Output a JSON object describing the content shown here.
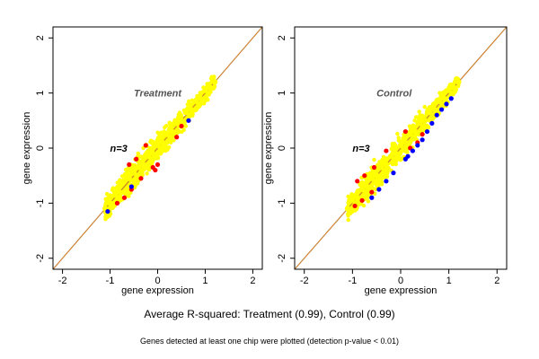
{
  "footer": {
    "summary": "Average R-squared: Treatment (0.99), Control (0.99)",
    "note": "Genes detected at least one chip were plotted (detection p-value < 0.01)"
  },
  "colors": {
    "points_main": "#ffff00",
    "points_red": "#ff0000",
    "points_blue": "#0000ff",
    "diagonal": "#3a3aa0",
    "fit_line": "#e08a1e"
  },
  "chart_data": [
    {
      "type": "scatter",
      "title": "Treatment",
      "annotation": "n=3",
      "xlabel": "gene expression",
      "ylabel": "gene expression",
      "xlim": [
        -2.2,
        2.2
      ],
      "ylim": [
        -2.2,
        2.2
      ],
      "xticks": [
        -2,
        -1,
        0,
        1,
        2
      ],
      "yticks": [
        -2,
        -1,
        0,
        1,
        2
      ],
      "grid": false,
      "reference_lines": [
        {
          "name": "identity",
          "slope": 1,
          "intercept": 0,
          "color": "#3a3aa0"
        },
        {
          "name": "fit",
          "slope": 1,
          "intercept": 0,
          "color": "#e08a1e"
        }
      ],
      "cloud": {
        "x_range": [
          -1.1,
          1.2
        ],
        "spread": 0.14
      },
      "series": [
        {
          "color": "#ffff00",
          "points": [
            [
              -1.1,
              -1.1
            ],
            [
              -1.0,
              -1.0
            ],
            [
              -0.9,
              -0.85
            ],
            [
              -0.8,
              -0.8
            ],
            [
              -0.7,
              -0.6
            ],
            [
              -0.6,
              -0.55
            ],
            [
              -0.5,
              -0.45
            ],
            [
              -0.4,
              -0.35
            ],
            [
              -0.3,
              -0.3
            ],
            [
              -0.2,
              -0.15
            ],
            [
              -0.1,
              -0.1
            ],
            [
              0.0,
              0.05
            ],
            [
              0.1,
              0.1
            ],
            [
              0.2,
              0.25
            ],
            [
              0.3,
              0.3
            ],
            [
              0.4,
              0.45
            ],
            [
              0.5,
              0.5
            ],
            [
              0.6,
              0.65
            ],
            [
              0.7,
              0.7
            ],
            [
              0.8,
              0.85
            ],
            [
              0.9,
              0.9
            ],
            [
              1.0,
              1.05
            ],
            [
              1.1,
              1.1
            ],
            [
              1.2,
              1.2
            ]
          ]
        },
        {
          "color": "#ff0000",
          "points": [
            [
              -0.85,
              -1.0
            ],
            [
              -0.7,
              -0.9
            ],
            [
              -0.55,
              -0.75
            ],
            [
              -0.35,
              -0.55
            ],
            [
              -0.6,
              -0.3
            ],
            [
              -0.45,
              -0.2
            ],
            [
              -0.1,
              -0.35
            ],
            [
              0.0,
              -0.3
            ],
            [
              -0.25,
              0.05
            ],
            [
              0.4,
              0.2
            ],
            [
              -0.05,
              -0.4
            ],
            [
              0.5,
              0.4
            ]
          ]
        },
        {
          "color": "#0000ff",
          "points": [
            [
              -1.05,
              -1.15
            ],
            [
              -0.55,
              -0.7
            ],
            [
              0.65,
              0.5
            ]
          ]
        }
      ]
    },
    {
      "type": "scatter",
      "title": "Control",
      "annotation": "n=3",
      "xlabel": "gene expression",
      "ylabel": "gene expression",
      "xlim": [
        -2.2,
        2.2
      ],
      "ylim": [
        -2.2,
        2.2
      ],
      "xticks": [
        -2,
        -1,
        0,
        1,
        2
      ],
      "yticks": [
        -2,
        -1,
        0,
        1,
        2
      ],
      "grid": false,
      "reference_lines": [
        {
          "name": "identity",
          "slope": 1,
          "intercept": 0,
          "color": "#3a3aa0"
        },
        {
          "name": "fit",
          "slope": 1,
          "intercept": 0,
          "color": "#e08a1e"
        }
      ],
      "cloud": {
        "x_range": [
          -1.1,
          1.2
        ],
        "spread": 0.14
      },
      "series": [
        {
          "color": "#ffff00",
          "points": [
            [
              -1.1,
              -1.1
            ],
            [
              -1.0,
              -0.95
            ],
            [
              -0.9,
              -0.9
            ],
            [
              -0.8,
              -0.75
            ],
            [
              -0.7,
              -0.7
            ],
            [
              -0.6,
              -0.55
            ],
            [
              -0.5,
              -0.5
            ],
            [
              -0.4,
              -0.35
            ],
            [
              -0.3,
              -0.3
            ],
            [
              -0.2,
              -0.15
            ],
            [
              -0.1,
              -0.1
            ],
            [
              0.0,
              0.05
            ],
            [
              0.1,
              0.1
            ],
            [
              0.2,
              0.25
            ],
            [
              0.3,
              0.3
            ],
            [
              0.4,
              0.45
            ],
            [
              0.5,
              0.5
            ],
            [
              0.6,
              0.65
            ],
            [
              0.7,
              0.7
            ],
            [
              0.8,
              0.85
            ],
            [
              0.9,
              0.9
            ],
            [
              1.0,
              1.05
            ],
            [
              1.1,
              1.1
            ],
            [
              1.2,
              1.2
            ]
          ]
        },
        {
          "color": "#ff0000",
          "points": [
            [
              -0.95,
              -1.05
            ],
            [
              -0.8,
              -0.95
            ],
            [
              -0.6,
              -0.8
            ],
            [
              -0.9,
              -0.6
            ],
            [
              -0.75,
              -0.5
            ],
            [
              -0.55,
              -0.35
            ],
            [
              -0.3,
              -0.05
            ],
            [
              0.2,
              0.0
            ],
            [
              0.35,
              0.1
            ],
            [
              0.1,
              0.3
            ],
            [
              0.45,
              0.25
            ]
          ]
        },
        {
          "color": "#0000ff",
          "points": [
            [
              -0.6,
              -0.9
            ],
            [
              -0.45,
              -0.75
            ],
            [
              -0.3,
              -0.6
            ],
            [
              -0.15,
              -0.45
            ],
            [
              0.1,
              -0.2
            ],
            [
              0.15,
              -0.15
            ],
            [
              0.25,
              -0.05
            ],
            [
              0.35,
              0.05
            ],
            [
              0.45,
              0.15
            ],
            [
              0.55,
              0.3
            ],
            [
              0.65,
              0.45
            ],
            [
              0.75,
              0.6
            ],
            [
              0.85,
              0.7
            ],
            [
              0.95,
              0.8
            ],
            [
              1.05,
              0.9
            ]
          ]
        }
      ]
    }
  ]
}
